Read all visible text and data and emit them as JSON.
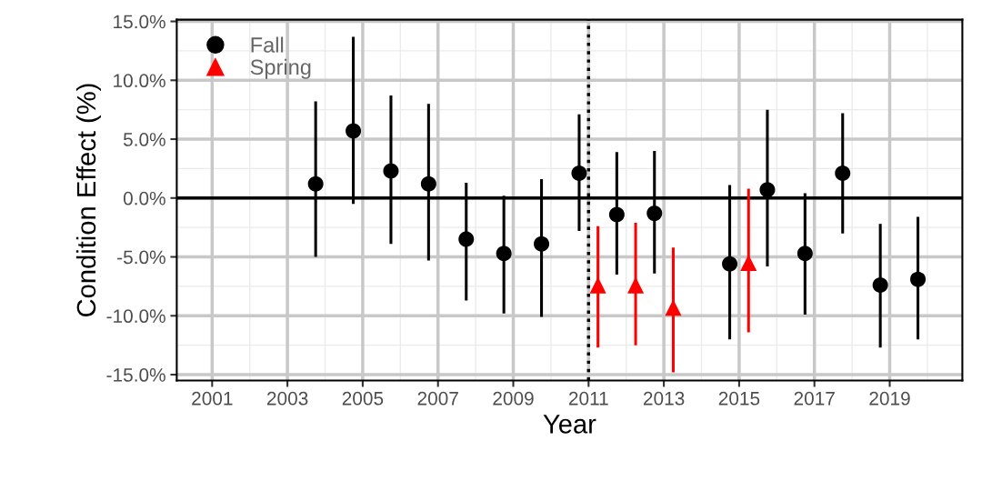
{
  "chart_data": {
    "type": "scatter",
    "xlabel": "Year",
    "ylabel": "Condition Effect (%)",
    "xlim": [
      2000.06,
      2020.93
    ],
    "ylim": [
      -15.5,
      15.15
    ],
    "xticks": [
      2001,
      2003,
      2005,
      2007,
      2009,
      2011,
      2013,
      2015,
      2017,
      2019
    ],
    "yticks": [
      {
        "value": -15,
        "label": "-15.0%"
      },
      {
        "value": -10,
        "label": "-10.0%"
      },
      {
        "value": -5,
        "label": "-5.0%"
      },
      {
        "value": 0,
        "label": "0.0%"
      },
      {
        "value": 5,
        "label": "5.0%"
      },
      {
        "value": 10,
        "label": "10.0%"
      },
      {
        "value": 15,
        "label": "15.0%"
      }
    ],
    "grid": true,
    "legend": "top left",
    "ref_lines": [
      {
        "axis": "y",
        "value": 0,
        "label": null,
        "color": "#000000",
        "line_style": "solid"
      },
      {
        "axis": "x",
        "value": 2011,
        "label": null,
        "color": "#000000",
        "line_style": "dotted"
      }
    ],
    "series": [
      {
        "name": "Fall",
        "color": "#000000",
        "marker": "circle",
        "x": [
          2003.75,
          2004.75,
          2005.75,
          2006.75,
          2007.75,
          2008.75,
          2009.75,
          2010.75,
          2011.75,
          2012.75,
          2014.75,
          2015.75,
          2016.75,
          2017.75,
          2018.75,
          2019.75
        ],
        "values": [
          1.2,
          5.7,
          2.3,
          1.2,
          -3.5,
          -4.7,
          -3.9,
          2.1,
          -1.4,
          -1.3,
          -5.6,
          0.7,
          -4.7,
          2.1,
          -7.4,
          -6.9
        ],
        "errors": [
          [
            -5.0,
            8.2
          ],
          [
            -0.5,
            13.7
          ],
          [
            -3.9,
            8.7
          ],
          [
            -5.3,
            8.0
          ],
          [
            -8.7,
            1.3
          ],
          [
            -9.8,
            0.2
          ],
          [
            -10.1,
            1.6
          ],
          [
            -2.8,
            7.1
          ],
          [
            -6.5,
            3.9
          ],
          [
            -6.4,
            4.0
          ],
          [
            -12.0,
            1.1
          ],
          [
            -5.8,
            7.5
          ],
          [
            -9.9,
            0.4
          ],
          [
            -3.0,
            7.2
          ],
          [
            -12.7,
            -2.2
          ],
          [
            -12.0,
            -1.6
          ]
        ]
      },
      {
        "name": "Spring",
        "color": "#ff0000",
        "marker": "triangle",
        "x": [
          2011.25,
          2012.25,
          2013.25,
          2015.25
        ],
        "values": [
          -7.4,
          -7.4,
          -9.3,
          -5.5
        ],
        "errors": [
          [
            -12.7,
            -2.4
          ],
          [
            -12.5,
            -2.1
          ],
          [
            -14.8,
            -4.2
          ],
          [
            -11.4,
            0.8
          ]
        ]
      }
    ]
  }
}
